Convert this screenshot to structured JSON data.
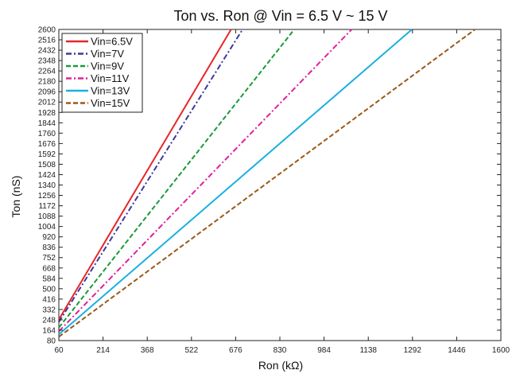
{
  "chart_data": {
    "type": "line",
    "title": "Ton vs. Ron @ Vin = 6.5 V ~ 15 V",
    "xlabel": "Ron (kΩ)",
    "ylabel": "Ton (nS)",
    "xlim": [
      60,
      1600
    ],
    "ylim": [
      80,
      2600
    ],
    "xticks": [
      60,
      214,
      368,
      522,
      676,
      830,
      984,
      1138,
      1292,
      1446,
      1600
    ],
    "yticks": [
      80,
      164,
      248,
      332,
      416,
      500,
      584,
      668,
      752,
      836,
      920,
      1004,
      1088,
      1172,
      1256,
      1340,
      1424,
      1508,
      1592,
      1676,
      1760,
      1844,
      1928,
      2012,
      2096,
      2180,
      2264,
      2348,
      2432,
      2516,
      2600
    ],
    "grid": false,
    "legend_position": "top-left",
    "series": [
      {
        "name": "Vin=6.5V",
        "color": "#e8262a",
        "dash": "solid",
        "x": [
          60,
          660
        ],
        "y": [
          250,
          2600
        ]
      },
      {
        "name": "Vin=7V",
        "color": "#3a3a9a",
        "dash": "dashdot",
        "x": [
          60,
          700
        ],
        "y": [
          230,
          2600
        ]
      },
      {
        "name": "Vin=9V",
        "color": "#1a9a3a",
        "dash": "dashed",
        "x": [
          60,
          880
        ],
        "y": [
          185,
          2600
        ]
      },
      {
        "name": "Vin=11V",
        "color": "#e0209a",
        "dash": "dashdot",
        "x": [
          60,
          1080
        ],
        "y": [
          155,
          2600
        ]
      },
      {
        "name": "Vin=13V",
        "color": "#1ab0e0",
        "dash": "solid",
        "x": [
          60,
          1290
        ],
        "y": [
          130,
          2600
        ]
      },
      {
        "name": "Vin=15V",
        "color": "#9a5a1a",
        "dash": "dashed",
        "x": [
          60,
          1510
        ],
        "y": [
          110,
          2600
        ]
      }
    ]
  }
}
